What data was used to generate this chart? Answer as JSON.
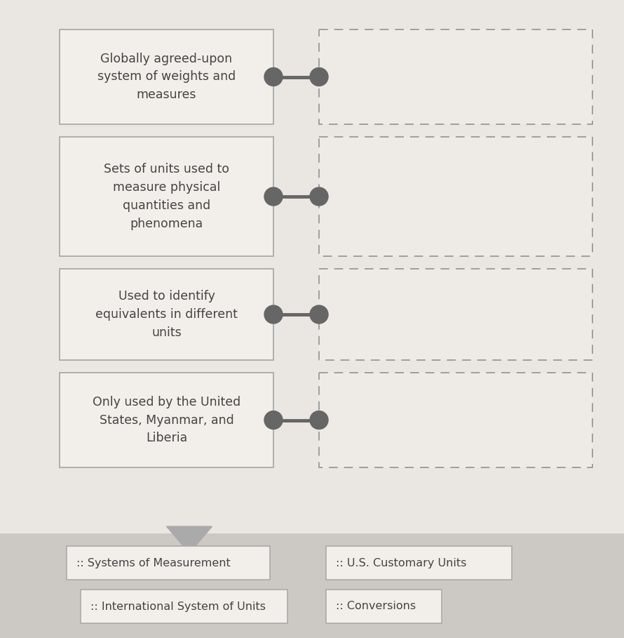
{
  "bg_color": "#dedad5",
  "top_area_color": "#eae7e2",
  "bottom_area_color": "#ccc9c4",
  "left_boxes": [
    {
      "text": "Globally agreed-upon\nsystem of weights and\nmeasures"
    },
    {
      "text": "Sets of units used to\nmeasure physical\nquantities and\nphenomena"
    },
    {
      "text": "Used to identify\nequivalents in different\nunits"
    },
    {
      "text": "Only used by the United\nStates, Myanmar, and\nLiberia"
    }
  ],
  "left_box_facecolor": "#f2efea",
  "left_box_edgecolor": "#aaaaaa",
  "right_box_facecolor": "#eeebe6",
  "right_box_edgecolor": "#999999",
  "dot_color": "#666666",
  "label_box_color": "#f2efea",
  "label_box_edge": "#aaaaaa",
  "label_items": [
    {
      "text": ":: Systems of Measurement"
    },
    {
      "text": ":: U.S. Customary Units"
    },
    {
      "text": ":: International System of Units"
    },
    {
      "text": ":: Conversions"
    }
  ],
  "triangle_color": "#aaaaaa"
}
